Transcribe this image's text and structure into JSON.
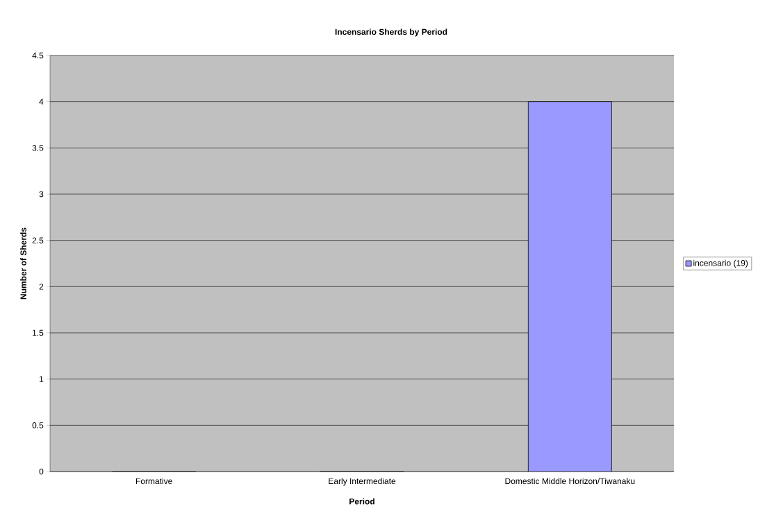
{
  "chart_data": {
    "type": "bar",
    "title": "Incensario Sherds by Period",
    "xlabel": "Period",
    "ylabel": "Number of Sherds",
    "categories": [
      "Formative",
      "Early Intermediate",
      "Domestic Middle Horizon/Tiwanaku"
    ],
    "series": [
      {
        "name": "incensario (19)",
        "color": "#9999ff",
        "values": [
          0,
          0,
          4
        ]
      }
    ],
    "ylim": [
      0,
      4.5
    ],
    "yticks": [
      0,
      0.5,
      1,
      1.5,
      2,
      2.5,
      3,
      3.5,
      4,
      4.5
    ],
    "grid": "y",
    "legend": "right"
  }
}
